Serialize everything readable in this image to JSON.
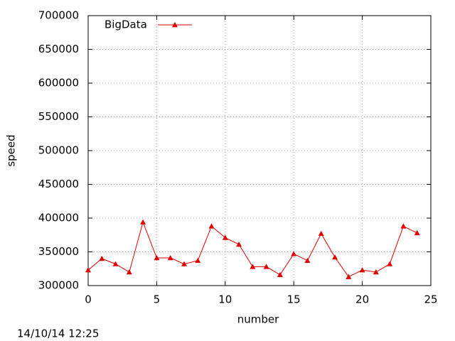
{
  "chart_data": {
    "type": "line",
    "x_label": "number",
    "y_label": "speed",
    "timestamp": "14/10/14 12:25",
    "x": [
      0,
      1,
      2,
      3,
      4,
      5,
      6,
      7,
      8,
      9,
      10,
      11,
      12,
      13,
      14,
      15,
      16,
      17,
      18,
      19,
      20,
      21,
      22,
      23,
      24
    ],
    "series": [
      {
        "name": "BigData",
        "color": "#e00000",
        "values": [
          323000,
          340000,
          332000,
          320000,
          394000,
          341000,
          341000,
          332000,
          337000,
          388000,
          371000,
          361000,
          328000,
          328000,
          316000,
          347000,
          337000,
          377000,
          342000,
          313000,
          323000,
          320000,
          332000,
          388000,
          378000
        ]
      }
    ],
    "xlim": [
      0,
      25
    ],
    "xticks": [
      0,
      5,
      10,
      15,
      20,
      25
    ],
    "ylim": [
      300000,
      700000
    ],
    "yticks": [
      300000,
      350000,
      400000,
      450000,
      500000,
      550000,
      600000,
      650000,
      700000
    ],
    "grid": true,
    "legend": "top-left"
  }
}
